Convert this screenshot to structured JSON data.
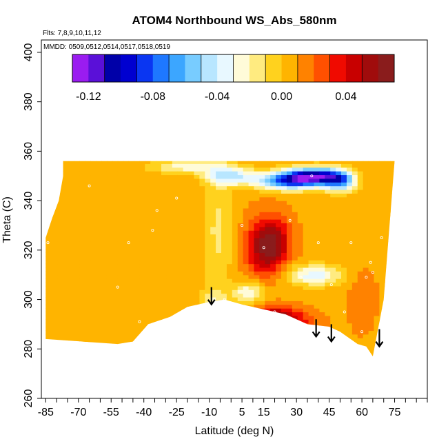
{
  "chart_data": {
    "type": "heatmap",
    "title": "ATOM4 Northbound WS_Abs_580nm",
    "flights_note": "Flts: 7,8,9,10,11,12",
    "dates_note": "MMDD: 0509,0512,0514,0517,0518,0519",
    "xlabel": "Latitude (deg N)",
    "ylabel": "Theta (C)",
    "xlim": [
      -87,
      90
    ],
    "ylim": [
      260,
      405
    ],
    "xticks": [
      -85,
      -70,
      -55,
      -40,
      -25,
      -10,
      5,
      15,
      30,
      45,
      60,
      75
    ],
    "yticks": [
      260,
      280,
      300,
      320,
      340,
      360,
      380,
      400
    ],
    "colorbar": {
      "min": -0.13,
      "max": 0.07,
      "step": 0.01,
      "tick_values": [
        -0.12,
        -0.08,
        -0.04,
        0.0,
        0.04
      ],
      "tick_labels": [
        "-0.12",
        "-0.08",
        "-0.04",
        "0.00",
        "0.04"
      ],
      "colors": [
        "#9a1cf0",
        "#5a10d8",
        "#0000a8",
        "#0000d0",
        "#0a36f2",
        "#1e78ff",
        "#3ca6ff",
        "#78ccff",
        "#b8e6ff",
        "#e8f8ff",
        "#fffbd8",
        "#ffeb80",
        "#ffd21e",
        "#ffb400",
        "#ff8200",
        "#ff5000",
        "#f00a00",
        "#c80000",
        "#a00c0c",
        "#8a1c1c"
      ]
    },
    "field": {
      "background_value": 0.008,
      "domain_outline": [
        [
          -77,
          356
        ],
        [
          75,
          356
        ],
        [
          70,
          300
        ],
        [
          65,
          277
        ],
        [
          62,
          281
        ],
        [
          58,
          282
        ],
        [
          50,
          287
        ],
        [
          45,
          289
        ],
        [
          35,
          290
        ],
        [
          25,
          294
        ],
        [
          15,
          296
        ],
        [
          5,
          298
        ],
        [
          -3,
          300
        ],
        [
          -10,
          299
        ],
        [
          -20,
          297
        ],
        [
          -28,
          293
        ],
        [
          -38,
          290
        ],
        [
          -45,
          283
        ],
        [
          -52,
          282
        ],
        [
          -85,
          284
        ],
        [
          -85,
          300
        ],
        [
          -85,
          325
        ],
        [
          -82,
          333
        ],
        [
          -79,
          340
        ],
        [
          -77,
          350
        ]
      ],
      "blobs": [
        {
          "lat": 15,
          "theta": 321,
          "value": 0.055,
          "sx": 6,
          "sy": 8
        },
        {
          "lat": 21,
          "theta": 324,
          "value": 0.035,
          "sx": 5,
          "sy": 7
        },
        {
          "lat": 20,
          "theta": 294,
          "value": 0.05,
          "sx": 8,
          "sy": 2.5
        },
        {
          "lat": 30,
          "theta": 291,
          "value": 0.03,
          "sx": 7,
          "sy": 2.5
        },
        {
          "lat": 38,
          "theta": 350,
          "value": -0.1,
          "sx": 9,
          "sy": 2.5
        },
        {
          "lat": 25,
          "theta": 348,
          "value": -0.07,
          "sx": 10,
          "sy": 2.5
        },
        {
          "lat": 50,
          "theta": 348,
          "value": -0.06,
          "sx": 5,
          "sy": 3
        },
        {
          "lat": 0,
          "theta": 350,
          "value": -0.04,
          "sx": 8,
          "sy": 2.5
        },
        {
          "lat": -20,
          "theta": 354,
          "value": -0.025,
          "sx": 12,
          "sy": 2
        },
        {
          "lat": 38,
          "theta": 310,
          "value": -0.035,
          "sx": 9,
          "sy": 3
        },
        {
          "lat": 8,
          "theta": 303,
          "value": -0.03,
          "sx": 5,
          "sy": 3
        },
        {
          "lat": -8,
          "theta": 300,
          "value": -0.015,
          "sx": 4,
          "sy": 3
        },
        {
          "lat": -6,
          "theta": 328,
          "value": -0.012,
          "sx": 5,
          "sy": 20
        },
        {
          "lat": 60,
          "theta": 300,
          "value": 0.02,
          "sx": 4,
          "sy": 8
        },
        {
          "lat": -85,
          "theta": 320,
          "value": 0.004,
          "sx": 6,
          "sy": 20
        }
      ],
      "sample_points": [
        [
          -84,
          323
        ],
        [
          -65,
          346
        ],
        [
          -47,
          323
        ],
        [
          -52,
          305
        ],
        [
          -42,
          291
        ],
        [
          -34,
          336
        ],
        [
          -36,
          328
        ],
        [
          -25,
          341
        ],
        [
          5,
          330
        ],
        [
          15,
          321
        ],
        [
          20,
          295
        ],
        [
          27,
          332
        ],
        [
          32,
          309
        ],
        [
          37,
          350
        ],
        [
          40,
          323
        ],
        [
          46,
          306
        ],
        [
          52,
          295
        ],
        [
          55,
          323
        ],
        [
          60,
          287
        ],
        [
          62,
          309
        ],
        [
          64,
          315
        ],
        [
          65,
          311
        ],
        [
          69,
          325
        ],
        [
          -3,
          300
        ]
      ]
    },
    "arrows": [
      {
        "lat": -9,
        "theta_top": 305,
        "theta_tip": 298
      },
      {
        "lat": 39,
        "theta_top": 292,
        "theta_tip": 285
      },
      {
        "lat": 46,
        "theta_top": 290,
        "theta_tip": 283
      },
      {
        "lat": 68,
        "theta_top": 288,
        "theta_tip": 281
      }
    ]
  }
}
